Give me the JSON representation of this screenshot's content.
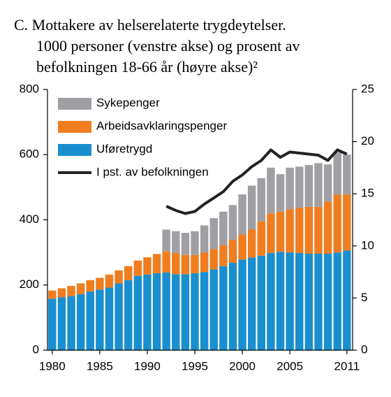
{
  "chart_data": {
    "type": "bar",
    "title": [
      "C.  Mottakere av helserelaterte trygdeytelser.",
      "1000  personer (venstre akse) og prosent av",
      "befolkningen 18-66 år (høyre akse)²"
    ],
    "stacked": true,
    "x": [
      1980,
      1981,
      1982,
      1983,
      1984,
      1985,
      1986,
      1987,
      1988,
      1989,
      1990,
      1991,
      1992,
      1993,
      1994,
      1995,
      1996,
      1997,
      1998,
      1999,
      2000,
      2001,
      2002,
      2003,
      2004,
      2005,
      2006,
      2007,
      2008,
      2009,
      2010,
      2011
    ],
    "series": [
      {
        "name": "Uføretrygd",
        "type": "bar",
        "color": "#1a8fd0",
        "values": [
          158,
          162,
          166,
          172,
          180,
          186,
          192,
          205,
          215,
          228,
          232,
          236,
          238,
          233,
          233,
          236,
          240,
          248,
          258,
          268,
          278,
          284,
          290,
          298,
          302,
          300,
          298,
          296,
          296,
          296,
          300,
          306
        ]
      },
      {
        "name": "Arbeidsavklaringspenger",
        "type": "bar",
        "color": "#f07d20",
        "values": [
          25,
          28,
          31,
          33,
          35,
          36,
          40,
          40,
          43,
          47,
          53,
          59,
          65,
          65,
          59,
          56,
          60,
          62,
          64,
          70,
          77,
          86,
          105,
          122,
          123,
          132,
          139,
          144,
          144,
          160,
          178,
          172
        ]
      },
      {
        "name": "Sykepenger",
        "type": "bar",
        "color": "#a0a0a4",
        "values": [
          null,
          null,
          null,
          null,
          null,
          null,
          null,
          null,
          null,
          null,
          null,
          null,
          67,
          67,
          68,
          73,
          83,
          95,
          103,
          107,
          123,
          135,
          133,
          140,
          115,
          128,
          126,
          128,
          134,
          114,
          129,
          122
        ]
      },
      {
        "name": "I pst. av befolkningen",
        "type": "line",
        "axis": "y2",
        "color": "#222222",
        "values": [
          null,
          null,
          null,
          null,
          null,
          null,
          null,
          null,
          null,
          null,
          null,
          null,
          13.8,
          13.4,
          13.1,
          13.3,
          14.0,
          14.6,
          15.2,
          16.2,
          16.8,
          17.6,
          18.2,
          19.2,
          18.5,
          19.0,
          18.9,
          18.8,
          18.7,
          18.2,
          19.2,
          18.8
        ]
      }
    ],
    "xlim": [
      1979.5,
      2011.6
    ],
    "xticks": [
      1980,
      1985,
      1990,
      1995,
      2000,
      2005,
      2011
    ],
    "ylim": [
      0,
      800
    ],
    "yticks": [
      0,
      200,
      400,
      600,
      800
    ],
    "y2lim": [
      0,
      25
    ],
    "y2ticks": [
      0,
      5,
      10,
      15,
      20,
      25
    ],
    "legend": "upper left"
  }
}
